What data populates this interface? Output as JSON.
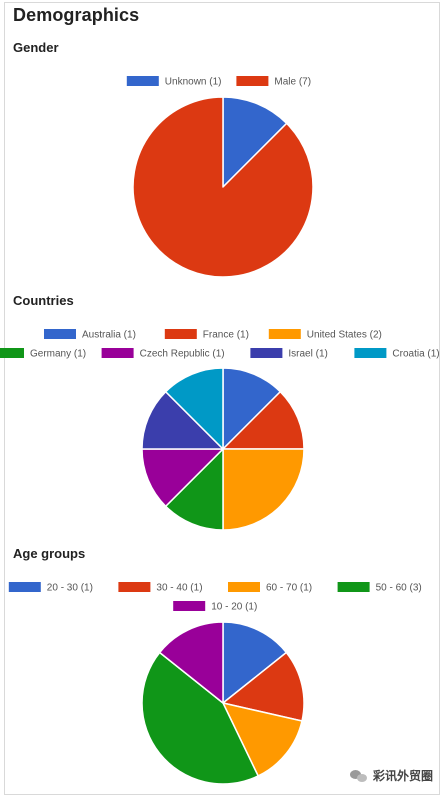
{
  "page_title": "Demographics",
  "watermark": "彩讯外贸圈",
  "chart_data": [
    {
      "type": "pie",
      "title": "Gender",
      "categories": [
        "Unknown (1)",
        "Male (7)"
      ],
      "values": [
        1,
        7
      ],
      "colors": [
        "#3366cc",
        "#dc3912"
      ],
      "legend": "top"
    },
    {
      "type": "pie",
      "title": "Countries",
      "categories": [
        "Australia (1)",
        "France (1)",
        "United States (2)",
        "Germany (1)",
        "Czech Republic (1)",
        "Israel (1)",
        "Croatia (1)"
      ],
      "values": [
        1,
        1,
        2,
        1,
        1,
        1,
        1
      ],
      "colors": [
        "#3366cc",
        "#dc3912",
        "#ff9900",
        "#109618",
        "#990099",
        "#3b3eac",
        "#0099c6"
      ],
      "legend": "top"
    },
    {
      "type": "pie",
      "title": "Age groups",
      "categories": [
        "20 - 30 (1)",
        "30 - 40 (1)",
        "60 - 70 (1)",
        "50 - 60 (3)",
        "10 - 20 (1)"
      ],
      "values": [
        1,
        1,
        1,
        3,
        1
      ],
      "colors": [
        "#3366cc",
        "#dc3912",
        "#ff9900",
        "#109618",
        "#990099"
      ],
      "legend": "top"
    }
  ]
}
